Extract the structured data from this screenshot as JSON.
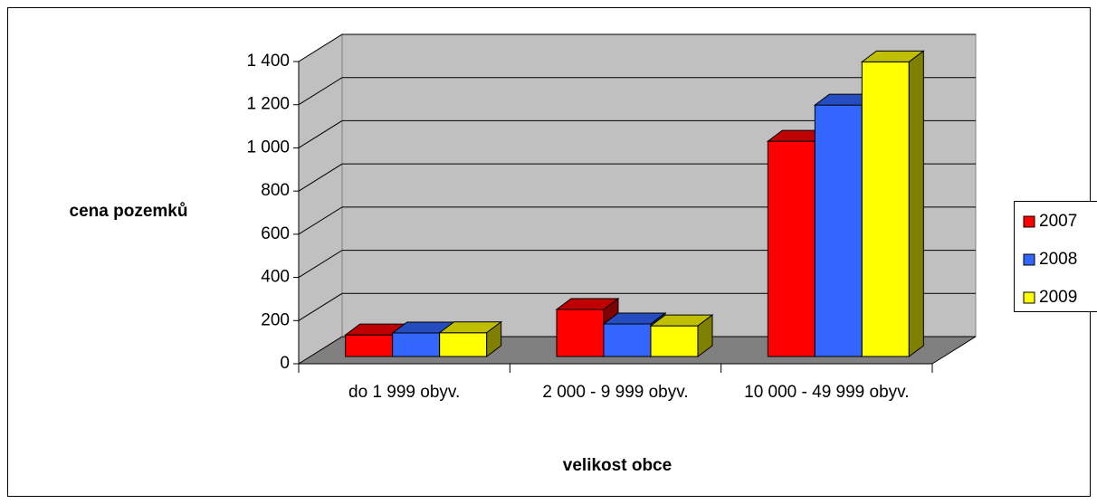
{
  "chart_data": {
    "type": "bar3d",
    "y_label": "cena pozemků",
    "x_label": "velikost obce",
    "categories": [
      "do 1 999 obyv.",
      "2 000 - 9 999 obyv.",
      "10 000 - 49 999 obyv."
    ],
    "series": [
      {
        "name": "2007",
        "color": "#ff0000",
        "values": [
          100,
          218,
          997
        ]
      },
      {
        "name": "2008",
        "color": "#3366ff",
        "values": [
          109,
          151,
          1165
        ]
      },
      {
        "name": "2009",
        "color": "#ffff00",
        "values": [
          110,
          142,
          1365
        ]
      }
    ],
    "ylim": [
      0,
      1400
    ],
    "yticks": [
      0,
      200,
      400,
      600,
      800,
      {
        "value": 1000,
        "label": "1 000"
      },
      {
        "value": 1200,
        "label": "1 200"
      },
      {
        "value": 1400,
        "label": "1 400"
      }
    ],
    "grid": true,
    "legend": "right"
  }
}
